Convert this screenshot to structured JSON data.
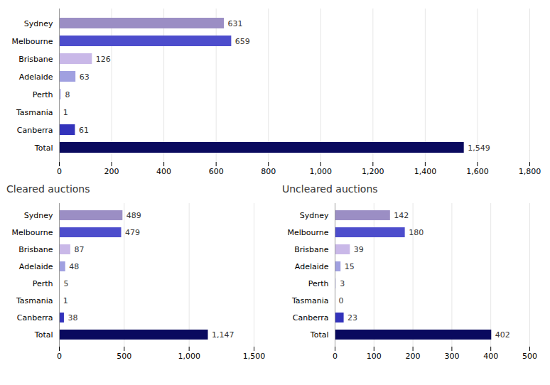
{
  "chart_data": [
    {
      "type": "bar",
      "orientation": "horizontal",
      "data_labels": true,
      "grid": true,
      "categories": [
        "Sydney",
        "Melbourne",
        "Brisbane",
        "Adelaide",
        "Perth",
        "Tasmania",
        "Canberra",
        "Total"
      ],
      "values": [
        631,
        659,
        126,
        63,
        8,
        1,
        61,
        1549
      ],
      "value_labels": [
        "631",
        "659",
        "126",
        "63",
        "8",
        "1",
        "61",
        "1,549"
      ],
      "colors": [
        "#9b8ec4",
        "#4d4dcc",
        "#c9b8e8",
        "#a0a0e0",
        "#c8c8f0",
        "#d8d8f8",
        "#3333bb",
        "#0a0a5e"
      ],
      "xlim": [
        0,
        1800
      ],
      "xticks": [
        0,
        200,
        400,
        600,
        800,
        {
          "value": 1000,
          "label": "1,000"
        },
        {
          "value": 1200,
          "label": "1,200"
        },
        {
          "value": 1400,
          "label": "1,400"
        },
        {
          "value": 1600,
          "label": "1,600"
        },
        {
          "value": 1800,
          "label": "1,800"
        }
      ]
    },
    {
      "type": "bar",
      "title": "Cleared auctions",
      "orientation": "horizontal",
      "data_labels": true,
      "grid": true,
      "categories": [
        "Sydney",
        "Melbourne",
        "Brisbane",
        "Adelaide",
        "Perth",
        "Tasmania",
        "Canberra",
        "Total"
      ],
      "values": [
        489,
        479,
        87,
        48,
        5,
        1,
        38,
        1147
      ],
      "value_labels": [
        "489",
        "479",
        "87",
        "48",
        "5",
        "1",
        "38",
        "1,147"
      ],
      "colors": [
        "#9b8ec4",
        "#4d4dcc",
        "#c9b8e8",
        "#a0a0e0",
        "#d8d8f8",
        "#d8d8f8",
        "#3333bb",
        "#0a0a5e"
      ],
      "xlim": [
        0,
        1500
      ],
      "xticks": [
        0,
        500,
        {
          "value": 1000,
          "label": "1,000"
        },
        {
          "value": 1500,
          "label": "1,500"
        }
      ]
    },
    {
      "type": "bar",
      "title": "Uncleared auctions",
      "orientation": "horizontal",
      "data_labels": true,
      "grid": true,
      "categories": [
        "Sydney",
        "Melbourne",
        "Brisbane",
        "Adelaide",
        "Perth",
        "Tasmania",
        "Canberra",
        "Total"
      ],
      "values": [
        142,
        180,
        39,
        15,
        3,
        0,
        23,
        402
      ],
      "colors": [
        "#9b8ec4",
        "#4d4dcc",
        "#c9b8e8",
        "#a0a0e0",
        "#d8d8f8",
        "#d8d8f8",
        "#3333bb",
        "#0a0a5e"
      ],
      "xlim": [
        0,
        500
      ],
      "xticks": [
        0,
        100,
        200,
        300,
        400,
        500
      ]
    }
  ]
}
